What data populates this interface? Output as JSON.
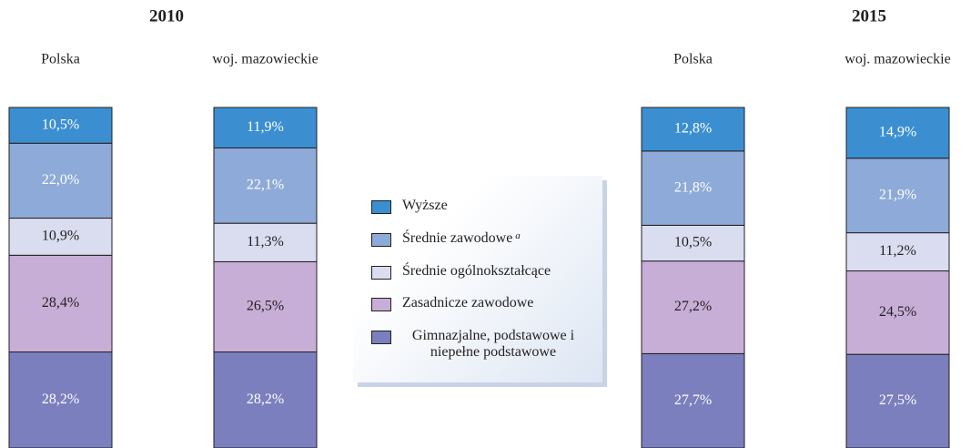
{
  "chart_data": {
    "type": "stacked_bar",
    "group_labels": [
      "2010",
      "2015"
    ],
    "categories": [
      "Polska",
      "woj. mazowieckie",
      "Polska",
      "woj. mazowieckie"
    ],
    "ylim": [
      0,
      100
    ],
    "series": [
      {
        "name": "Wyższe",
        "color": "#3b8fd1",
        "label_color": "#ffffff",
        "values": [
          10.5,
          11.9,
          12.8,
          14.9
        ],
        "value_labels": [
          "10,5%",
          "11,9%",
          "12,8%",
          "14,9%"
        ]
      },
      {
        "name": "Średnie zawodowe",
        "footnote_mark": "a",
        "color": "#8eaad8",
        "label_color": "#ffffff",
        "values": [
          22.0,
          22.1,
          21.8,
          21.9
        ],
        "value_labels": [
          "22,0%",
          "22,1%",
          "21,8%",
          "21,9%"
        ]
      },
      {
        "name": "Średnie ogólnokształcące",
        "color": "#d9ddef",
        "label_color": "#231f20",
        "values": [
          10.9,
          11.3,
          10.5,
          11.2
        ],
        "value_labels": [
          "10,9%",
          "11,3%",
          "10,5%",
          "11,2%"
        ]
      },
      {
        "name": "Zasadnicze zawodowe",
        "color": "#c7aed7",
        "label_color": "#231f20",
        "values": [
          28.4,
          26.5,
          27.2,
          24.5
        ],
        "value_labels": [
          "28,4%",
          "26,5%",
          "27,2%",
          "24,5%"
        ]
      },
      {
        "name": "Gimnazjalne, podstawowe i niepełne podstawowe",
        "color": "#7b7fbe",
        "label_color": "#ffffff",
        "values": [
          28.2,
          28.2,
          27.7,
          27.5
        ],
        "value_labels": [
          "28,2%",
          "28,2%",
          "27,7%",
          "27,5%"
        ]
      }
    ]
  }
}
